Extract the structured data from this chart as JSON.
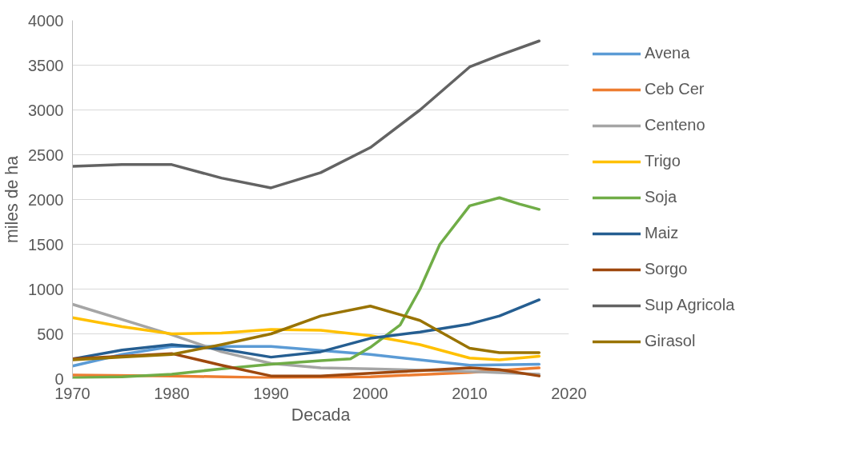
{
  "chart_data": {
    "type": "line",
    "xlabel": "Decada",
    "ylabel": "miles de ha",
    "xlim": [
      1970,
      2020
    ],
    "xticks": [
      1970,
      1980,
      1990,
      2000,
      2010,
      2020
    ],
    "ylim": [
      0,
      4000
    ],
    "yticks": [
      0,
      500,
      1000,
      1500,
      2000,
      2500,
      3000,
      3500,
      4000
    ],
    "grid": "y",
    "legend": "right",
    "line_style": "solid",
    "marker": "none",
    "series": [
      {
        "name": "Avena",
        "color": "#5b9bd5",
        "x": [
          1970,
          1975,
          1980,
          1990,
          2000,
          2005,
          2010,
          2017
        ],
        "values": [
          140,
          270,
          360,
          360,
          270,
          210,
          150,
          160
        ]
      },
      {
        "name": "Ceb Cer",
        "color": "#ed7d31",
        "x": [
          1970,
          1980,
          1990,
          2000,
          2010,
          2017
        ],
        "values": [
          40,
          30,
          10,
          20,
          70,
          120
        ]
      },
      {
        "name": "Centeno",
        "color": "#a5a5a5",
        "x": [
          1970,
          1980,
          1985,
          1990,
          1995,
          2000,
          2010,
          2017
        ],
        "values": [
          830,
          490,
          300,
          170,
          120,
          110,
          80,
          50
        ]
      },
      {
        "name": "Trigo",
        "color": "#ffc000",
        "x": [
          1970,
          1975,
          1980,
          1985,
          1990,
          1995,
          2000,
          2005,
          2010,
          2013,
          2017
        ],
        "values": [
          680,
          580,
          500,
          510,
          550,
          540,
          480,
          380,
          230,
          210,
          250
        ]
      },
      {
        "name": "Soja",
        "color": "#70ad47",
        "x": [
          1970,
          1975,
          1980,
          1985,
          1990,
          1995,
          1998,
          2000,
          2003,
          2005,
          2007,
          2010,
          2013,
          2015,
          2017
        ],
        "values": [
          10,
          20,
          50,
          110,
          160,
          200,
          220,
          350,
          600,
          1000,
          1500,
          1930,
          2020,
          1950,
          1890
        ]
      },
      {
        "name": "Maiz",
        "color": "#255e91",
        "x": [
          1970,
          1975,
          1980,
          1985,
          1990,
          1995,
          2000,
          2005,
          2010,
          2013,
          2017
        ],
        "values": [
          220,
          320,
          380,
          330,
          240,
          300,
          450,
          520,
          610,
          700,
          880
        ]
      },
      {
        "name": "Sorgo",
        "color": "#9e480e",
        "x": [
          1970,
          1975,
          1980,
          1985,
          1990,
          1995,
          2000,
          2005,
          2010,
          2013,
          2017
        ],
        "values": [
          220,
          250,
          280,
          150,
          30,
          30,
          60,
          90,
          120,
          100,
          30
        ]
      },
      {
        "name": "Sup Agricola",
        "color": "#636363",
        "x": [
          1970,
          1975,
          1980,
          1985,
          1990,
          1995,
          2000,
          2005,
          2010,
          2013,
          2017
        ],
        "values": [
          2370,
          2390,
          2390,
          2240,
          2130,
          2300,
          2580,
          3000,
          3480,
          3610,
          3770
        ]
      },
      {
        "name": "Girasol",
        "color": "#997300",
        "x": [
          1970,
          1975,
          1980,
          1985,
          1990,
          1995,
          2000,
          2005,
          2010,
          2013,
          2017
        ],
        "values": [
          210,
          240,
          270,
          380,
          500,
          700,
          810,
          650,
          340,
          290,
          290
        ]
      }
    ]
  }
}
